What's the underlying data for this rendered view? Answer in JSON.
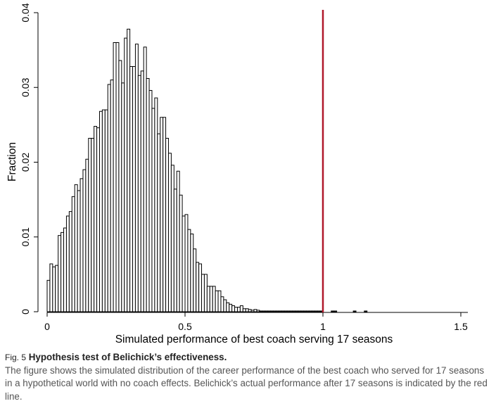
{
  "chart_data": {
    "type": "bar",
    "xlabel": "Simulated performance of best coach serving 17 seasons",
    "ylabel": "Fraction",
    "xlim": [
      0,
      1.5
    ],
    "ylim": [
      0,
      0.04
    ],
    "x_ticks": [
      "0",
      "0.5",
      "1",
      "1.5"
    ],
    "y_ticks": [
      "0",
      "0.01",
      "0.02",
      "0.03",
      "0.04"
    ],
    "grid": false,
    "bin_width": 0.01,
    "bin_starts": [
      0.0,
      0.01,
      0.02,
      0.03,
      0.04,
      0.05,
      0.06,
      0.07,
      0.08,
      0.09,
      0.1,
      0.11,
      0.12,
      0.13,
      0.14,
      0.15,
      0.16,
      0.17,
      0.18,
      0.19,
      0.2,
      0.21,
      0.22,
      0.23,
      0.24,
      0.25,
      0.26,
      0.27,
      0.28,
      0.29,
      0.3,
      0.31,
      0.32,
      0.33,
      0.34,
      0.35,
      0.36,
      0.37,
      0.38,
      0.39,
      0.4,
      0.41,
      0.42,
      0.43,
      0.44,
      0.45,
      0.46,
      0.47,
      0.48,
      0.49,
      0.5,
      0.51,
      0.52,
      0.53,
      0.54,
      0.55,
      0.56,
      0.57,
      0.58,
      0.59,
      0.6,
      0.61,
      0.62,
      0.63,
      0.64,
      0.65,
      0.66,
      0.67,
      0.68,
      0.69,
      0.7,
      0.71,
      0.72,
      0.73,
      0.74,
      0.75,
      0.76,
      0.77,
      0.78,
      0.79,
      0.8,
      0.81,
      0.82,
      0.83,
      0.84,
      0.85,
      0.86,
      0.87,
      0.88,
      0.89,
      0.9,
      0.91,
      0.92,
      0.93,
      0.94,
      0.95,
      0.96,
      0.97,
      0.98,
      0.99,
      1.03,
      1.04,
      1.11,
      1.15
    ],
    "values": [
      0.0042,
      0.0064,
      0.006,
      0.0062,
      0.0102,
      0.0106,
      0.0112,
      0.0128,
      0.0134,
      0.0154,
      0.017,
      0.0162,
      0.0178,
      0.019,
      0.0204,
      0.0232,
      0.0232,
      0.0248,
      0.0246,
      0.0268,
      0.027,
      0.027,
      0.0304,
      0.031,
      0.036,
      0.036,
      0.0336,
      0.0306,
      0.0366,
      0.0378,
      0.0328,
      0.0328,
      0.0358,
      0.0316,
      0.0322,
      0.0354,
      0.0312,
      0.0296,
      0.0272,
      0.0286,
      0.0238,
      0.026,
      0.026,
      0.0232,
      0.0212,
      0.0196,
      0.0164,
      0.0188,
      0.0156,
      0.0128,
      0.013,
      0.011,
      0.0104,
      0.0084,
      0.0066,
      0.0064,
      0.005,
      0.005,
      0.0034,
      0.0034,
      0.0034,
      0.0028,
      0.0028,
      0.002,
      0.0016,
      0.0012,
      0.001,
      0.0008,
      0.0006,
      0.0006,
      0.0008,
      0.0004,
      0.0004,
      0.0003,
      0.0002,
      0.0003,
      0.0002,
      0.0001,
      0.0001,
      0.0001,
      0.0001,
      0.0001,
      0.0001,
      0.0001,
      0.0001,
      0.0001,
      0.0001,
      0.0001,
      0.0001,
      0.0001,
      0.0001,
      0.0001,
      0.0001,
      0.0001,
      0.0001,
      0.0001,
      0.0001,
      0.0001,
      0.0001,
      0.0001,
      0.0001,
      0.0001,
      0.0001,
      0.0001
    ],
    "reference_line": {
      "x": 1.0,
      "color": "#b0182a"
    },
    "bar_fill": "#ffffff",
    "bar_stroke": "#000000"
  },
  "caption": {
    "label": "Fig. 5",
    "title": "Hypothesis test of Belichick’s effectiveness.",
    "text": "The figure shows the simulated distribution of the career performance of the best coach who served for 17 seasons in a hypothetical world with no coach effects. Belichick’s actual performance after 17 seasons is indicated by the red line."
  }
}
